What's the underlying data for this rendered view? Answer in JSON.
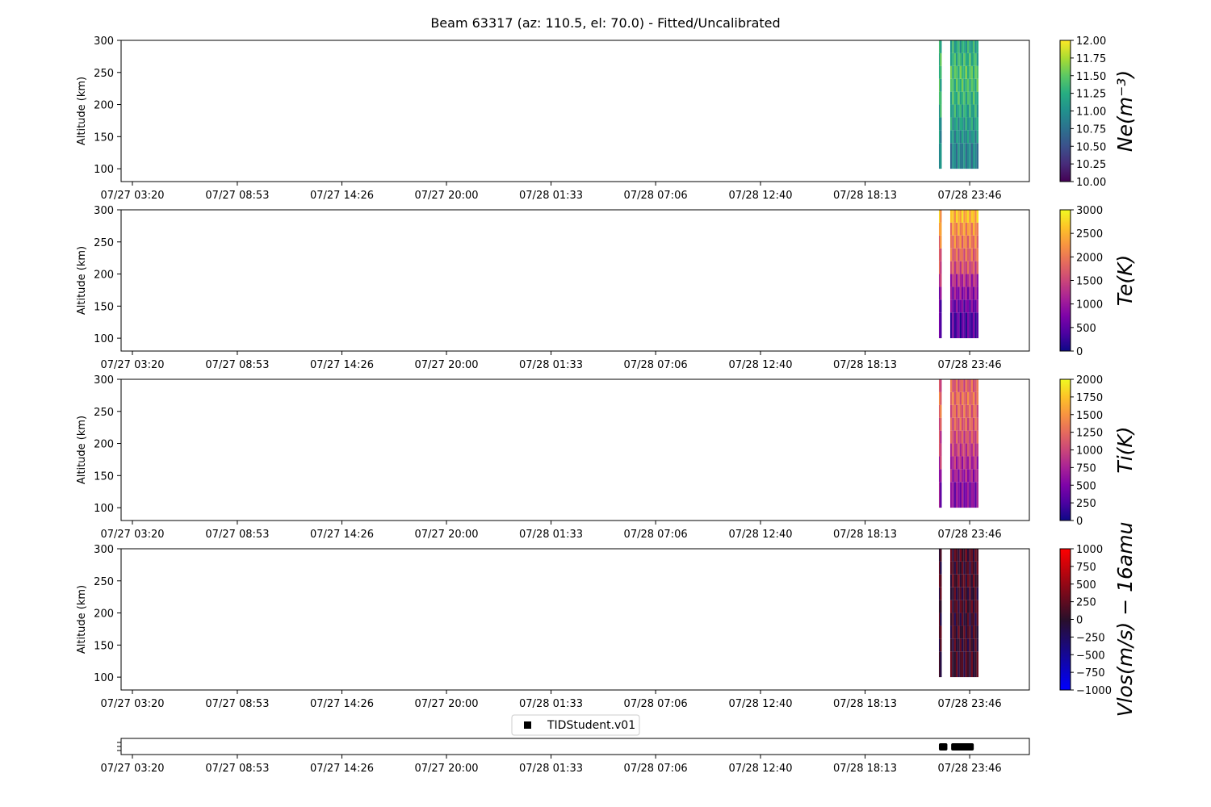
{
  "chart_data": {
    "title": "Beam 63317 (az: 110.5, el: 70.0) - Fitted/Uncalibrated",
    "x_tick_labels": [
      "07/27 03:20",
      "07/27 08:53",
      "07/27 14:26",
      "07/27 20:00",
      "07/28 01:33",
      "07/28 07:06",
      "07/28 12:40",
      "07/28 18:13",
      "07/28 23:46"
    ],
    "x_range_hours": [
      -0.6,
      47.6
    ],
    "x_tick_hours": [
      0,
      5.567,
      11.117,
      16.667,
      22.217,
      27.767,
      33.333,
      38.883,
      44.433
    ],
    "data_start_hours": [
      42.8,
      42.85,
      43.4,
      43.5,
      43.6,
      43.7,
      43.8,
      43.9,
      44.0,
      44.1,
      44.2,
      44.3,
      44.4,
      44.5,
      44.6,
      44.7,
      44.8
    ],
    "data_end_hours": [
      42.9,
      44.9
    ],
    "altitude_bins_km": [
      100,
      140,
      160,
      180,
      200,
      220,
      240,
      260,
      280,
      300
    ],
    "panels": [
      {
        "type": "heatmap",
        "ylabel": "Altitude (km)",
        "ylim": [
          80,
          300
        ],
        "yticks": [
          "100",
          "150",
          "200",
          "250",
          "300"
        ],
        "colorbar_label": "Ne(m⁻³)",
        "colormap": "viridis",
        "clim": [
          10.0,
          12.0
        ],
        "colorbar_ticks": [
          "10.00",
          "10.25",
          "10.50",
          "10.75",
          "11.00",
          "11.25",
          "11.50",
          "11.75",
          "12.00"
        ],
        "profile_by_altitude": [
          10.9,
          11.0,
          11.1,
          11.2,
          11.3,
          11.35,
          11.4,
          11.3,
          11.2,
          11.1
        ]
      },
      {
        "type": "heatmap",
        "ylabel": "Altitude (km)",
        "ylim": [
          80,
          300
        ],
        "yticks": [
          "100",
          "150",
          "200",
          "250",
          "300"
        ],
        "colorbar_label": "Te(K)",
        "colormap": "plasma",
        "clim": [
          0,
          3000
        ],
        "colorbar_ticks": [
          "0",
          "500",
          "1000",
          "1500",
          "2000",
          "2500",
          "3000"
        ],
        "profile_by_altitude": [
          450,
          650,
          900,
          1200,
          1600,
          1800,
          2000,
          2200,
          2500,
          2800
        ]
      },
      {
        "type": "heatmap",
        "ylabel": "Altitude (km)",
        "ylim": [
          80,
          300
        ],
        "yticks": [
          "100",
          "150",
          "200",
          "250",
          "300"
        ],
        "colorbar_label": "Ti(K)",
        "colormap": "plasma",
        "clim": [
          0,
          2000
        ],
        "colorbar_ticks": [
          "0",
          "250",
          "500",
          "750",
          "1000",
          "1250",
          "1500",
          "1750",
          "2000"
        ],
        "profile_by_altitude": [
          550,
          700,
          800,
          950,
          1050,
          1150,
          1200,
          1250,
          1150,
          1050
        ]
      },
      {
        "type": "heatmap",
        "ylabel": "Altitude (km)",
        "ylim": [
          80,
          300
        ],
        "yticks": [
          "100",
          "150",
          "200",
          "250",
          "300"
        ],
        "colorbar_label": "Vlos(m/s) − 16amu",
        "colormap": "blue-black-red",
        "clim": [
          -1000,
          1000
        ],
        "colorbar_ticks": [
          "−1000",
          "−750",
          "−500",
          "−250",
          "0",
          "250",
          "500",
          "750",
          "1000"
        ],
        "profile_by_altitude": [
          80,
          60,
          100,
          40,
          120,
          60,
          150,
          90,
          140,
          100
        ]
      }
    ],
    "availability_panel": {
      "legend": "TIDStudent.v01",
      "segments_hours": [
        [
          42.8,
          43.25
        ],
        [
          43.45,
          44.65
        ]
      ]
    }
  }
}
